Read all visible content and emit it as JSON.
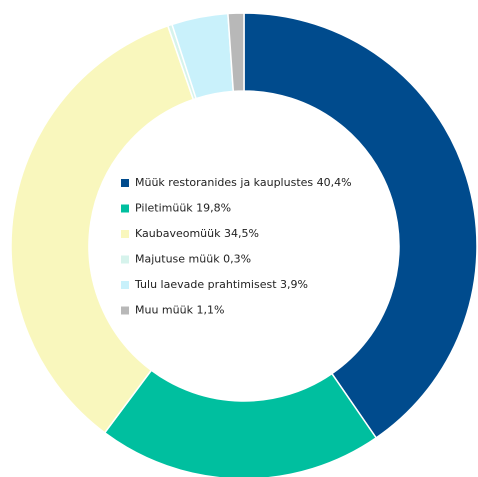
{
  "chart_data": {
    "type": "donut",
    "categories": [
      "Müük restoranides ja kauplustes",
      "Piletimüük",
      "Kaubaveomüük",
      "Majutuse müük",
      "Tulu laevade prahtimisest",
      "Muu müük"
    ],
    "values": [
      40.4,
      19.8,
      34.5,
      0.3,
      3.9,
      1.1
    ],
    "value_labels": [
      "40,4%",
      "19,8%",
      "34,5%",
      "0,3%",
      "3,9%",
      "1,1%"
    ],
    "colors": [
      "#004b8d",
      "#00bf9f",
      "#f9f7bd",
      "#d6f3ec",
      "#c9f1fb",
      "#b8b8b8"
    ]
  }
}
